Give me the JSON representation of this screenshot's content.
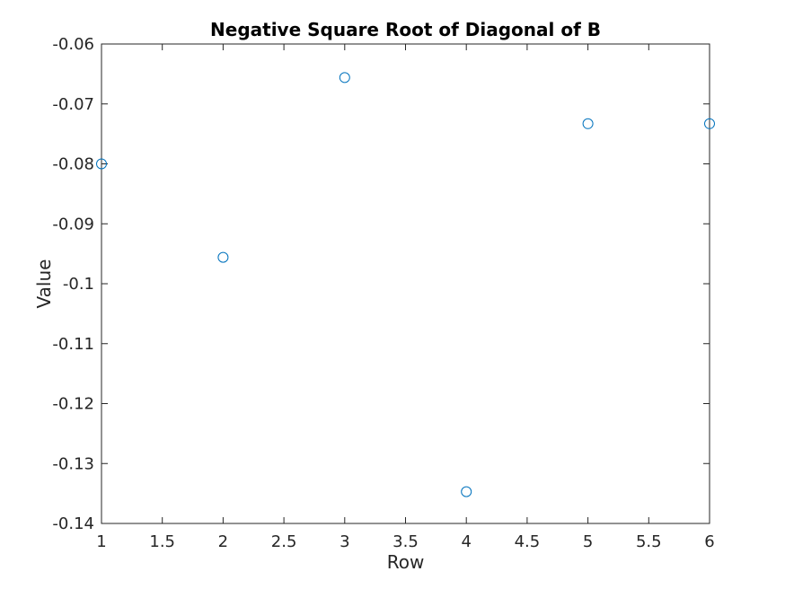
{
  "chart_data": {
    "type": "scatter",
    "title": "Negative Square Root of Diagonal of B",
    "xlabel": "Row",
    "ylabel": "Value",
    "xlim": [
      1,
      6
    ],
    "ylim": [
      -0.14,
      -0.06
    ],
    "x_ticks": [
      "1",
      "1.5",
      "2",
      "2.5",
      "3",
      "3.5",
      "4",
      "4.5",
      "5",
      "5.5",
      "6"
    ],
    "y_ticks": [
      "-0.06",
      "-0.07",
      "-0.08",
      "-0.09",
      "-0.1",
      "-0.11",
      "-0.12",
      "-0.13",
      "-0.14"
    ],
    "grid": false,
    "marker": "circle-open",
    "marker_color": "#0072bd",
    "series": [
      {
        "x": [
          1,
          2,
          3,
          4,
          5,
          6
        ],
        "y": [
          -0.08,
          -0.0956,
          -0.0656,
          -0.1347,
          -0.0733,
          -0.0733
        ]
      }
    ]
  }
}
